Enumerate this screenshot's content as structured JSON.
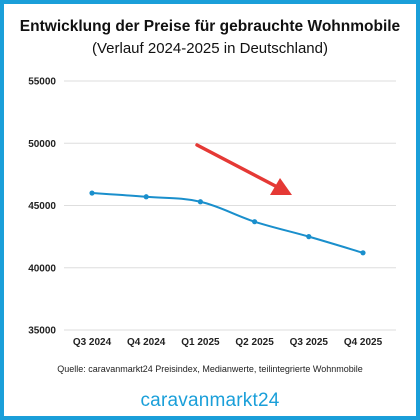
{
  "chart_data": {
    "type": "line",
    "title": "Entwicklung der Preise für gebrauchte Wohnmobile",
    "subtitle": "(Verlauf 2024-2025 in Deutschland)",
    "categories": [
      "Q3 2024",
      "Q4 2024",
      "Q1 2025",
      "Q2 2025",
      "Q3 2025",
      "Q4 2025"
    ],
    "series": [
      {
        "values": [
          46000,
          45700,
          45300,
          43700,
          42500,
          41200
        ]
      }
    ],
    "ylim": [
      35000,
      55000
    ],
    "yticks": [
      "35000",
      "40000",
      "45000",
      "50000",
      "55000"
    ],
    "grid": true,
    "annotation": "trend-arrow-down",
    "colors": {
      "line": "#1a8fcc",
      "arrow": "#e53935",
      "grid": "#dedede",
      "frame": "#1a9fd9"
    }
  },
  "source": "Quelle: caravanmarkt24 Preisindex, Medianwerte, teilintegrierte Wohnmobile",
  "brand": "caravanmarkt24"
}
